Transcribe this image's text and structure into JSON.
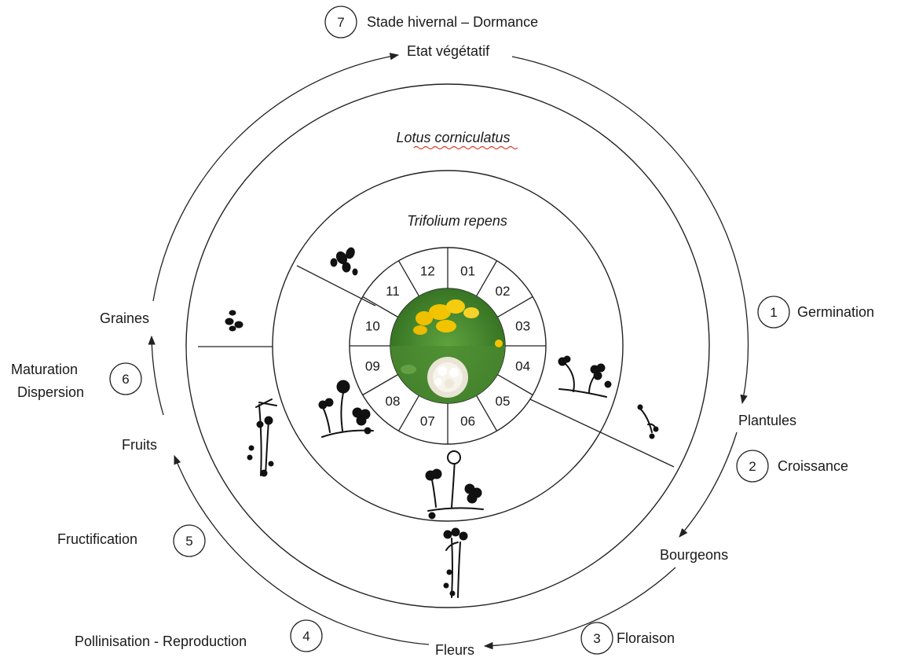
{
  "cycle": {
    "stages": {
      "etat_vegetatif": "Etat végétatif",
      "plantules": "Plantules",
      "bourgeons": "Bourgeons",
      "fleurs": "Fleurs",
      "fruits": "Fruits",
      "graines": "Graines"
    },
    "steps": [
      {
        "number": "1",
        "label": "Germination"
      },
      {
        "number": "2",
        "label": "Croissance"
      },
      {
        "number": "3",
        "label": "Floraison"
      },
      {
        "number": "4",
        "label": "Pollinisation - Reproduction"
      },
      {
        "number": "5",
        "label": "Fructification"
      },
      {
        "number": "6",
        "label_line1": "Maturation",
        "label_line2": "Dispersion"
      },
      {
        "number": "7",
        "label": "Stade hivernal – Dormance"
      }
    ]
  },
  "species": {
    "outer": "Lotus corniculatus",
    "inner": "Trifolium repens"
  },
  "months": [
    "01",
    "02",
    "03",
    "04",
    "05",
    "06",
    "07",
    "08",
    "09",
    "10",
    "11",
    "12"
  ],
  "colors": {
    "line": "#222222",
    "lotus_flower": "#f2c400",
    "clover_flower": "#f4f1ea",
    "foliage": "#3f7d28",
    "spellcheck_underline": "#d9362b"
  },
  "icons": {
    "center_photo": "flower-photo-icon",
    "seeds": "seeds-icon",
    "plant": "plant-silhouette-icon"
  }
}
